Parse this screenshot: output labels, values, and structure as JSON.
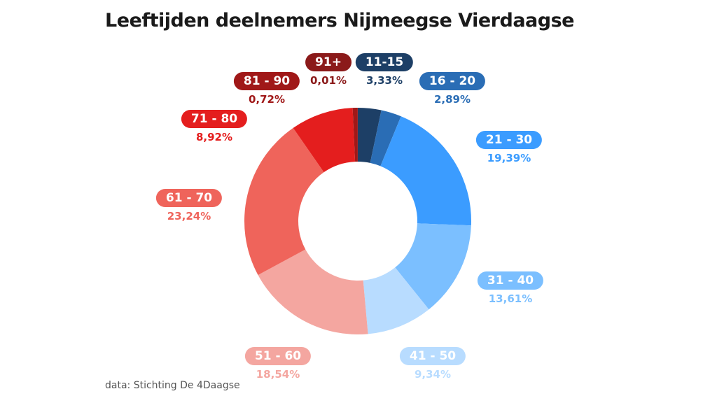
{
  "chart_data": {
    "type": "pie",
    "donut": true,
    "title": "Leeftijden deelnemers Nijmeegse Vierdaagse",
    "source": "data: Stichting De 4Daagse",
    "start": "top, clockwise",
    "slices": [
      {
        "label": "11-15",
        "value": 3.33,
        "value_label": "3,33%",
        "color": "#1d3f66"
      },
      {
        "label": "16 - 20",
        "value": 2.89,
        "value_label": "2,89%",
        "color": "#2a6db5"
      },
      {
        "label": "21 - 30",
        "value": 19.39,
        "value_label": "19,39%",
        "color": "#3b9cff"
      },
      {
        "label": "31 - 40",
        "value": 13.61,
        "value_label": "13,61%",
        "color": "#7bbfff"
      },
      {
        "label": "41 - 50",
        "value": 9.34,
        "value_label": "9,34%",
        "color": "#b8dcff"
      },
      {
        "label": "51 - 60",
        "value": 18.54,
        "value_label": "18,54%",
        "color": "#f4a6a0"
      },
      {
        "label": "61 - 70",
        "value": 23.24,
        "value_label": "23,24%",
        "color": "#ef645b"
      },
      {
        "label": "71 - 80",
        "value": 8.92,
        "value_label": "8,92%",
        "color": "#e41e1e"
      },
      {
        "label": "81 - 90",
        "value": 0.72,
        "value_label": "0,72%",
        "color": "#a01818"
      },
      {
        "label": "91+",
        "value": 0.01,
        "value_label": "0,01%",
        "color": "#8b1a1a"
      }
    ]
  }
}
